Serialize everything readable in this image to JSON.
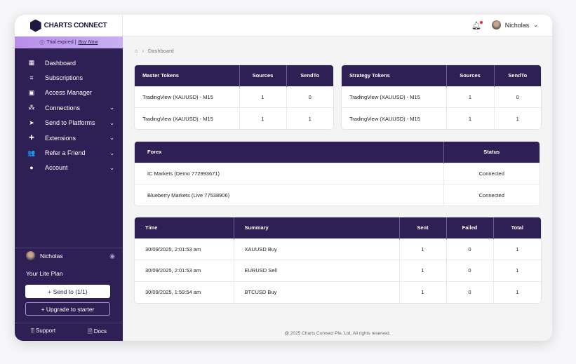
{
  "brand": "CHARTS CONNECT",
  "trial": {
    "text": "Trial expired |",
    "link": "Buy Now"
  },
  "nav": [
    {
      "label": "Dashboard",
      "icon": "dashboard-icon",
      "glyph": "▦",
      "chevron": false
    },
    {
      "label": "Subscriptions",
      "icon": "subscriptions-icon",
      "glyph": "≡",
      "chevron": false
    },
    {
      "label": "Access Manager",
      "icon": "access-manager-icon",
      "glyph": "▣",
      "chevron": false
    },
    {
      "label": "Connections",
      "icon": "connections-icon",
      "glyph": "⁂",
      "chevron": true
    },
    {
      "label": "Send to Platforms",
      "icon": "send-icon",
      "glyph": "➤",
      "chevron": true
    },
    {
      "label": "Extensions",
      "icon": "puzzle-icon",
      "glyph": "✚",
      "chevron": true
    },
    {
      "label": "Refer a Friend",
      "icon": "users-icon",
      "glyph": "👥",
      "chevron": true
    },
    {
      "label": "Account",
      "icon": "account-icon",
      "glyph": "●",
      "chevron": true
    }
  ],
  "sidebar_user": "Nicholas",
  "plan": "Your Lite Plan",
  "send_button": "+ Send to (1/1)",
  "upgrade_button": "+ Upgrade to starter",
  "support": "Support",
  "docs": "Docs",
  "topbar": {
    "user": "Nicholas"
  },
  "breadcrumb": "Dashboard",
  "master": {
    "headers": [
      "Master Tokens",
      "Sources",
      "SendTo"
    ],
    "rows": [
      [
        "TradingView (XAUUSD) - M15",
        "1",
        "0"
      ],
      [
        "TradingView (XAUUSD) - M15",
        "1",
        "1"
      ]
    ]
  },
  "strategy": {
    "headers": [
      "Strategy Tokens",
      "Sources",
      "SendTo"
    ],
    "rows": [
      [
        "TradingView (XAUUSD) - M15",
        "1",
        "0"
      ],
      [
        "TradingView (XAUUSD) - M15",
        "1",
        "1"
      ]
    ]
  },
  "forex": {
    "headers": [
      "Forex",
      "Status"
    ],
    "rows": [
      [
        "IC Markets (Demo 772993671)",
        "Connected"
      ],
      [
        "Blueberry Markets (Live 77538906)",
        "Connected"
      ]
    ]
  },
  "trades": {
    "headers": [
      "Time",
      "Summary",
      "Sent",
      "Failed",
      "Total"
    ],
    "rows": [
      [
        "30/09/2025, 2:01:53 am",
        "XAUUSD Buy",
        "1",
        "0",
        "1"
      ],
      [
        "30/09/2025, 2:01:53 am",
        "EURUSD Sell",
        "1",
        "0",
        "1"
      ],
      [
        "30/09/2025, 1:59:54 am",
        "BTCUSD Buy",
        "1",
        "0",
        "1"
      ]
    ]
  },
  "footer": "@ 2025 Charts Connect Pte. Ltd. All rights reserved.",
  "colors": {
    "sidebar": "#2e1f54",
    "trial_banner": "#c0a0f0"
  }
}
